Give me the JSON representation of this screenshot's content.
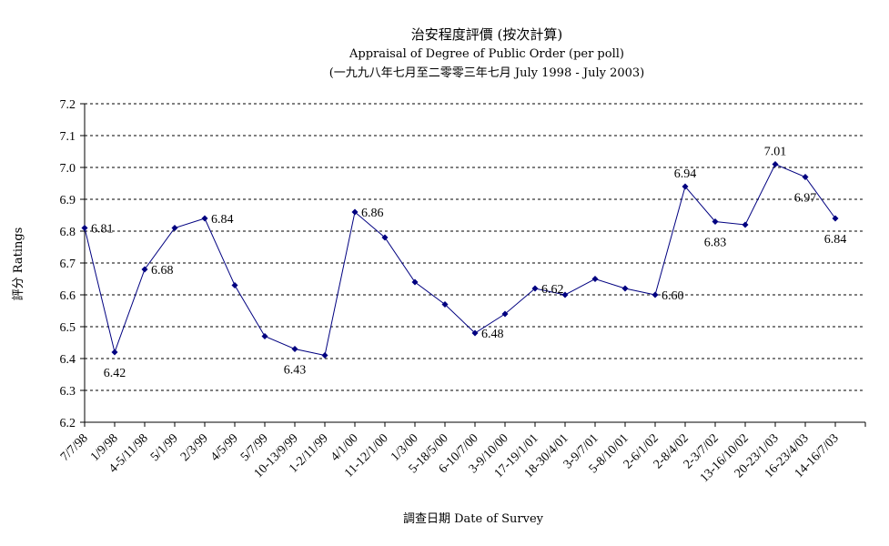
{
  "chart_data": {
    "type": "line",
    "title": "治安程度評價 (按次計算)",
    "subtitle": "Appraisal of Degree of Public Order (per poll)",
    "subtitle2": "(一九九八年七月至二零零三年七月 July 1998 - July 2003)",
    "xlabel": "調查日期 Date of Survey",
    "ylabel": "評分 Ratings",
    "ylim": [
      6.2,
      7.2
    ],
    "yticks": [
      "6.2",
      "6.3",
      "6.4",
      "6.5",
      "6.6",
      "6.7",
      "6.8",
      "6.9",
      "7.0",
      "7.1",
      "7.2"
    ],
    "grid": true,
    "series_color": "#000080",
    "categories": [
      "7/7/98",
      "1/9/98",
      "4-5/11/98",
      "5/1/99",
      "2/3/99",
      "4/5/99",
      "5/7/99",
      "10-13/9/99",
      "1-2/11/99",
      "4/1/00",
      "11-12/1/00",
      "1/3/00",
      "5-18/5/00",
      "6-10/7/00",
      "3-9/10/00",
      "17-19/1/01",
      "18-30/4/01",
      "3-9/7/01",
      "5-8/10/01",
      "2-6/1/02",
      "2-8/4/02",
      "2-3/7/02",
      "13-16/10/02",
      "20-23/1/03",
      "16-23/4/03",
      "14-16/7/03"
    ],
    "series": [
      {
        "values": [
          6.81,
          6.42,
          6.68,
          6.81,
          6.84,
          6.63,
          6.47,
          6.43,
          6.41,
          6.86,
          6.78,
          6.64,
          6.57,
          6.48,
          6.54,
          6.62,
          6.6,
          6.65,
          6.62,
          6.6,
          6.94,
          6.83,
          6.82,
          7.01,
          6.97,
          6.84
        ]
      }
    ],
    "data_labels": [
      {
        "index": 0,
        "text": "6.81",
        "pos": "right"
      },
      {
        "index": 1,
        "text": "6.42",
        "pos": "below"
      },
      {
        "index": 2,
        "text": "6.68",
        "pos": "right"
      },
      {
        "index": 4,
        "text": "6.84",
        "pos": "right"
      },
      {
        "index": 7,
        "text": "6.43",
        "pos": "below"
      },
      {
        "index": 9,
        "text": "6.86",
        "pos": "right"
      },
      {
        "index": 13,
        "text": "6.48",
        "pos": "right"
      },
      {
        "index": 15,
        "text": "6.62",
        "pos": "right"
      },
      {
        "index": 19,
        "text": "6.60",
        "pos": "right"
      },
      {
        "index": 20,
        "text": "6.94",
        "pos": "above"
      },
      {
        "index": 21,
        "text": "6.83",
        "pos": "below"
      },
      {
        "index": 23,
        "text": "7.01",
        "pos": "above"
      },
      {
        "index": 24,
        "text": "6.97",
        "pos": "below"
      },
      {
        "index": 25,
        "text": "6.84",
        "pos": "below"
      }
    ]
  }
}
